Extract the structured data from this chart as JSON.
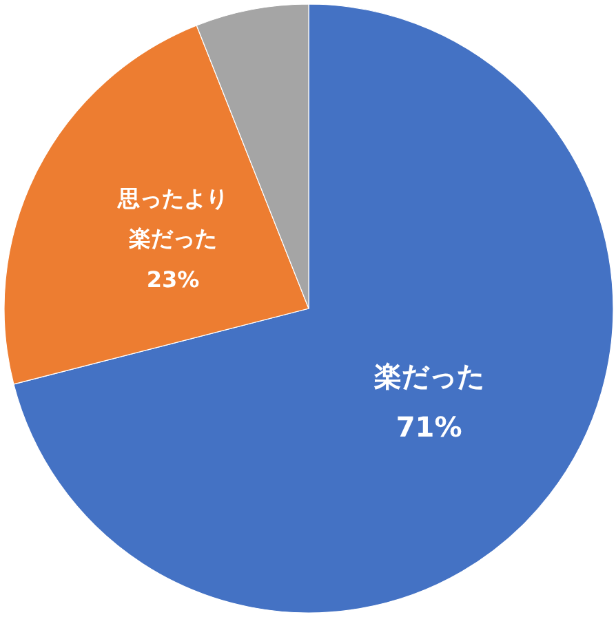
{
  "chart_data": {
    "type": "pie",
    "categories": [
      "楽だった",
      "思ったより楽だった",
      null
    ],
    "values": [
      71,
      23,
      6
    ],
    "colors": [
      "#4472c4",
      "#ed7d31",
      "#a5a5a5"
    ],
    "value_labels": [
      "71%",
      "23%",
      null
    ]
  }
}
